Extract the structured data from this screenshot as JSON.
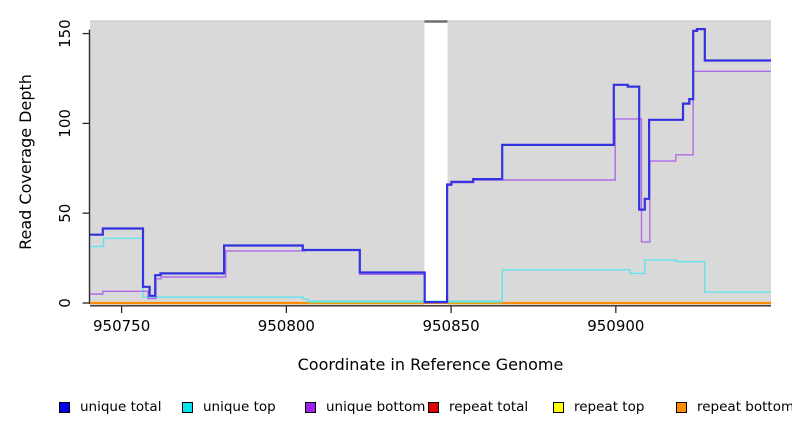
{
  "figure": {
    "background": "#ffffff",
    "plot_background": "#d9d9d9",
    "axis_color": "#2a2a2a",
    "text_color": "#000000"
  },
  "chart_data": {
    "type": "line",
    "step": true,
    "title": "",
    "xlabel": "Coordinate in Reference Genome",
    "ylabel": "Read Coverage Depth",
    "xlim": [
      950740.4,
      950947.1
    ],
    "ylim": [
      0,
      157
    ],
    "xticks": [
      950750,
      950800,
      950850,
      950900
    ],
    "yticks": [
      0,
      50,
      100,
      150
    ],
    "grid": false,
    "legend_position": "bottom",
    "missing_data_band": {
      "x0": 950841.9,
      "x1": 950848.9
    },
    "baseline_blend": {
      "x0": 950806.6,
      "x1": 950865.5,
      "value": 0.4,
      "color": "#8FD98F"
    },
    "series": [
      {
        "name": "unique total",
        "color": "#3332E0",
        "width": 2.2,
        "z": 7,
        "points": [
          [
            950740.4,
            38
          ],
          [
            950744.3,
            41.5
          ],
          [
            950756.5,
            9
          ],
          [
            950758.5,
            4
          ],
          [
            950760.2,
            15.5
          ],
          [
            950761.8,
            16.5
          ],
          [
            950781.1,
            32
          ],
          [
            950805.0,
            29.5
          ],
          [
            950822.3,
            17
          ],
          [
            950842.0,
            0.5
          ],
          [
            950848.8,
            66
          ],
          [
            950850.1,
            67.5
          ],
          [
            950856.7,
            69
          ],
          [
            950865.5,
            88
          ],
          [
            950899.4,
            121.5
          ],
          [
            950903.6,
            120.5
          ],
          [
            950907.1,
            52
          ],
          [
            950908.8,
            58
          ],
          [
            950910.1,
            102
          ],
          [
            950920.4,
            111
          ],
          [
            950922.3,
            113.5
          ],
          [
            950923.5,
            151.5
          ],
          [
            950924.6,
            152.5
          ],
          [
            950927.0,
            135
          ]
        ]
      },
      {
        "name": "unique top",
        "color": "#63E3EA",
        "width": 1.4,
        "z": 5,
        "points": [
          [
            950740.4,
            31.5
          ],
          [
            950744.5,
            36
          ],
          [
            950756.5,
            3.3
          ],
          [
            950805.2,
            2.1
          ],
          [
            950806.6,
            1
          ],
          [
            950865.5,
            18.5
          ],
          [
            950904.3,
            16.5
          ],
          [
            950908.8,
            24
          ],
          [
            950918.3,
            23
          ],
          [
            950927.0,
            6
          ]
        ]
      },
      {
        "name": "unique bottom",
        "color": "#AE6BE8",
        "width": 1.4,
        "z": 6,
        "points": [
          [
            950740.4,
            5
          ],
          [
            950744.3,
            6.5
          ],
          [
            950758.0,
            2.5
          ],
          [
            950760.4,
            13.5
          ],
          [
            950762.0,
            14.5
          ],
          [
            950781.6,
            29
          ],
          [
            950805.6,
            29.5
          ],
          [
            950822.3,
            16
          ],
          [
            950842.0,
            0.3
          ],
          [
            950848.8,
            65.5
          ],
          [
            950850.1,
            67
          ],
          [
            950856.7,
            68.5
          ],
          [
            950899.8,
            102.5
          ],
          [
            950907.8,
            34
          ],
          [
            950910.3,
            79
          ],
          [
            950918.2,
            82.5
          ],
          [
            950923.5,
            129
          ]
        ]
      },
      {
        "name": "repeat total",
        "color": "#DD0000",
        "width": 1.2,
        "z": 2,
        "points": [
          [
            950740.4,
            0
          ]
        ]
      },
      {
        "name": "repeat top",
        "color": "#FFFF00",
        "width": 1.2,
        "z": 1,
        "points": [
          [
            950740.4,
            0
          ]
        ]
      },
      {
        "name": "repeat bottom",
        "color": "#FF8C00",
        "width": 2.2,
        "z": 3,
        "points": [
          [
            950740.4,
            0
          ]
        ]
      }
    ]
  },
  "legend": {
    "items": [
      {
        "label": "unique total",
        "swatch_color": "#0000EE"
      },
      {
        "label": "unique top",
        "swatch_color": "#00E5EE"
      },
      {
        "label": "unique bottom",
        "swatch_color": "#A020F0"
      },
      {
        "label": "repeat total",
        "swatch_color": "#DD0000"
      },
      {
        "label": "repeat top",
        "swatch_color": "#FFFF00"
      },
      {
        "label": "repeat bottom",
        "swatch_color": "#FF8C00"
      }
    ]
  }
}
